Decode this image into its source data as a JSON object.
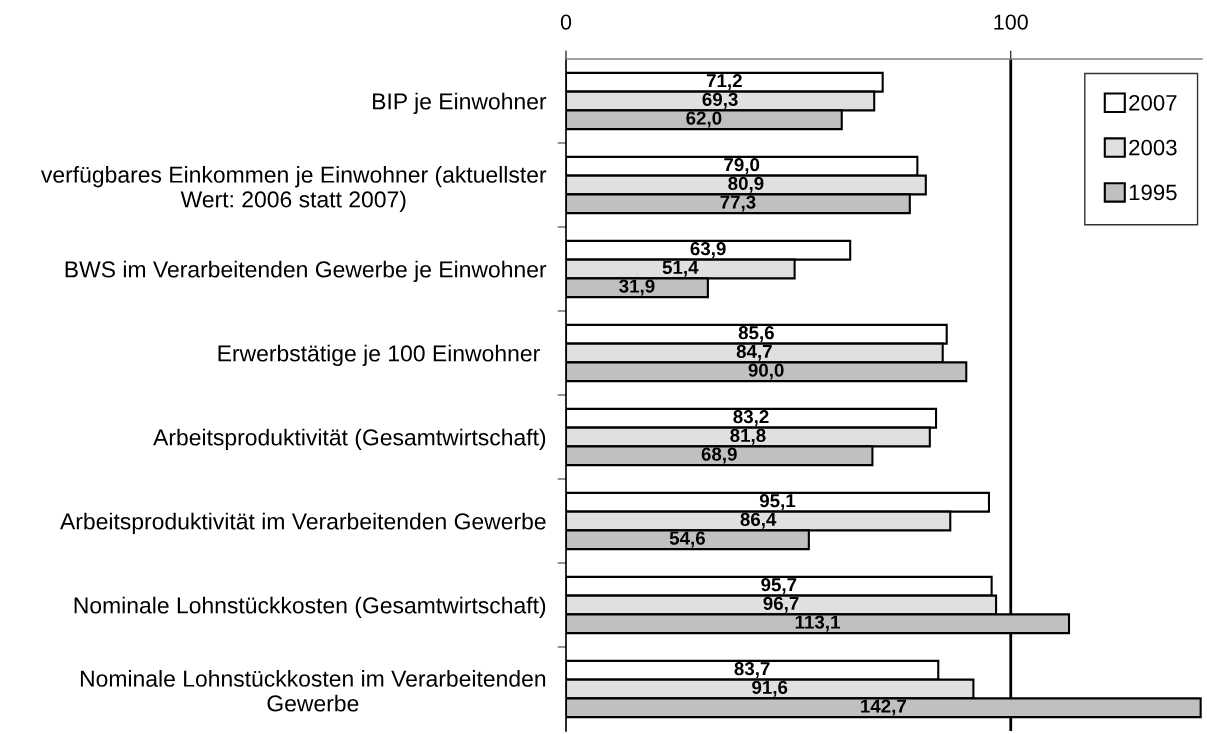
{
  "chart_data": {
    "type": "bar",
    "orientation": "horizontal",
    "categories": [
      "BIP je Einwohner",
      "verfügbares Einkommen je Einwohner (aktuellster Wert: 2006 statt 2007)",
      "BWS im Verarbeitenden Gewerbe je Einwohner",
      "Erwerbstätige je 100 Einwohner ",
      "Arbeitsproduktivität (Gesamtwirtschaft)",
      "Arbeitsproduktivität im Verarbeitenden Gewerbe",
      "Nominale Lohnstückkosten (Gesamtwirtschaft)",
      "Nominale Lohnstückkosten im Verarbeitenden Gewerbe"
    ],
    "series": [
      {
        "name": "2007",
        "color": "#ffffff",
        "values": [
          71.2,
          79.0,
          63.9,
          85.6,
          83.2,
          95.1,
          95.7,
          83.7
        ],
        "value_labels": [
          "71,2",
          "79,0",
          "63,9",
          "85,6",
          "83,2",
          "95,1",
          "95,7",
          "83,7"
        ]
      },
      {
        "name": "2003",
        "color": "#e0e0e0",
        "values": [
          69.3,
          80.9,
          51.4,
          84.7,
          81.8,
          86.4,
          96.7,
          91.6
        ],
        "value_labels": [
          "69,3",
          "80,9",
          "51,4",
          "84,7",
          "81,8",
          "86,4",
          "96,7",
          "91,6"
        ]
      },
      {
        "name": "1995",
        "color": "#c0c0c0",
        "values": [
          62.0,
          77.3,
          31.9,
          90.0,
          68.9,
          54.6,
          113.1,
          142.7
        ],
        "value_labels": [
          "62,0",
          "77,3",
          "31,9",
          "90,0",
          "68,9",
          "54,6",
          "113,1",
          "142,7"
        ]
      }
    ],
    "xlim": [
      0,
      143
    ],
    "xticks": [
      0,
      100
    ],
    "ref_lines": [
      {
        "axis": "x",
        "value": 100,
        "color": "#000000"
      }
    ],
    "legend": "top right"
  }
}
